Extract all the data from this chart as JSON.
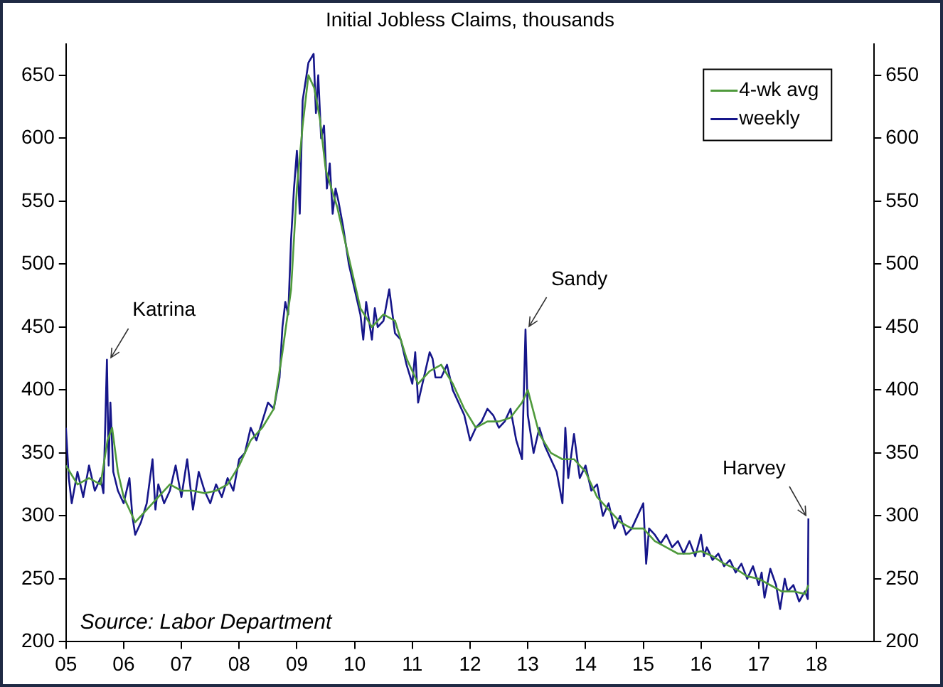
{
  "chart_data": {
    "type": "line",
    "title": "Initial Jobless Claims, thousands",
    "xlim": [
      2005,
      2019
    ],
    "xticks": [
      {
        "value": 2005,
        "label": "05"
      },
      {
        "value": 2006,
        "label": "06"
      },
      {
        "value": 2007,
        "label": "07"
      },
      {
        "value": 2008,
        "label": "08"
      },
      {
        "value": 2009,
        "label": "09"
      },
      {
        "value": 2010,
        "label": "10"
      },
      {
        "value": 2011,
        "label": "11"
      },
      {
        "value": 2012,
        "label": "12"
      },
      {
        "value": 2013,
        "label": "13"
      },
      {
        "value": 2014,
        "label": "14"
      },
      {
        "value": 2015,
        "label": "15"
      },
      {
        "value": 2016,
        "label": "16"
      },
      {
        "value": 2017,
        "label": "17"
      },
      {
        "value": 2018,
        "label": "18"
      }
    ],
    "ylim": [
      200,
      675
    ],
    "yticks": [
      200,
      250,
      300,
      350,
      400,
      450,
      500,
      550,
      600,
      650
    ],
    "y2lim": [
      200,
      675
    ],
    "y2ticks": [
      200,
      250,
      300,
      350,
      400,
      450,
      500,
      550,
      600,
      650
    ],
    "grid": false,
    "legend": "top right",
    "annotations": [
      {
        "text": "Katrina",
        "x": 2005.71,
        "y": 424
      },
      {
        "text": "Sandy",
        "x": 2012.96,
        "y": 448
      },
      {
        "text": "Harvey",
        "x": 2017.86,
        "y": 298
      },
      "Source: Labor Department"
    ],
    "series": [
      {
        "name": "4-wk avg",
        "color": "#4f9a3c",
        "x": [
          2005,
          2005.2,
          2005.4,
          2005.6,
          2005.72,
          2005.8,
          2005.9,
          2006,
          2006.2,
          2006.4,
          2006.6,
          2006.8,
          2007,
          2007.2,
          2007.4,
          2007.6,
          2007.8,
          2008,
          2008.2,
          2008.4,
          2008.6,
          2008.75,
          2008.9,
          2009,
          2009.1,
          2009.2,
          2009.3,
          2009.4,
          2009.5,
          2009.7,
          2009.9,
          2010.1,
          2010.3,
          2010.5,
          2010.7,
          2010.9,
          2011.1,
          2011.3,
          2011.5,
          2011.7,
          2011.9,
          2012.1,
          2012.3,
          2012.5,
          2012.7,
          2012.9,
          2013,
          2013.2,
          2013.4,
          2013.6,
          2013.8,
          2014,
          2014.2,
          2014.4,
          2014.6,
          2014.8,
          2015,
          2015.2,
          2015.4,
          2015.6,
          2015.8,
          2016,
          2016.2,
          2016.4,
          2016.6,
          2016.8,
          2017,
          2017.2,
          2017.4,
          2017.6,
          2017.8,
          2017.86
        ],
        "values": [
          340,
          325,
          330,
          325,
          360,
          370,
          335,
          315,
          295,
          305,
          315,
          325,
          320,
          320,
          318,
          320,
          325,
          340,
          360,
          370,
          385,
          430,
          480,
          560,
          610,
          650,
          640,
          615,
          575,
          545,
          505,
          465,
          450,
          460,
          455,
          425,
          405,
          415,
          420,
          405,
          385,
          370,
          375,
          375,
          378,
          390,
          400,
          365,
          350,
          345,
          345,
          335,
          315,
          305,
          295,
          290,
          290,
          280,
          275,
          270,
          270,
          272,
          268,
          262,
          258,
          252,
          250,
          245,
          240,
          240,
          238,
          245
        ]
      },
      {
        "name": "weekly",
        "color": "#16168a",
        "x": [
          2005,
          2005.05,
          2005.1,
          2005.2,
          2005.3,
          2005.4,
          2005.5,
          2005.6,
          2005.65,
          2005.71,
          2005.74,
          2005.77,
          2005.82,
          2005.9,
          2006,
          2006.1,
          2006.15,
          2006.2,
          2006.3,
          2006.4,
          2006.5,
          2006.55,
          2006.6,
          2006.7,
          2006.8,
          2006.9,
          2007,
          2007.1,
          2007.2,
          2007.3,
          2007.4,
          2007.5,
          2007.6,
          2007.7,
          2007.8,
          2007.9,
          2008,
          2008.1,
          2008.2,
          2008.3,
          2008.4,
          2008.5,
          2008.6,
          2008.7,
          2008.75,
          2008.8,
          2008.85,
          2008.9,
          2008.95,
          2009,
          2009.05,
          2009.1,
          2009.15,
          2009.2,
          2009.29,
          2009.33,
          2009.37,
          2009.42,
          2009.47,
          2009.52,
          2009.57,
          2009.62,
          2009.67,
          2009.72,
          2009.8,
          2009.9,
          2010,
          2010.1,
          2010.15,
          2010.2,
          2010.3,
          2010.35,
          2010.4,
          2010.5,
          2010.6,
          2010.7,
          2010.8,
          2010.9,
          2011,
          2011.05,
          2011.1,
          2011.2,
          2011.3,
          2011.35,
          2011.4,
          2011.5,
          2011.6,
          2011.7,
          2011.8,
          2011.9,
          2012,
          2012.1,
          2012.2,
          2012.3,
          2012.4,
          2012.5,
          2012.6,
          2012.7,
          2012.8,
          2012.9,
          2012.96,
          2013,
          2013.1,
          2013.2,
          2013.3,
          2013.4,
          2013.5,
          2013.6,
          2013.65,
          2013.7,
          2013.8,
          2013.9,
          2014,
          2014.1,
          2014.2,
          2014.3,
          2014.4,
          2014.5,
          2014.6,
          2014.7,
          2014.8,
          2014.9,
          2015,
          2015.05,
          2015.1,
          2015.2,
          2015.3,
          2015.4,
          2015.5,
          2015.6,
          2015.7,
          2015.8,
          2015.9,
          2016,
          2016.05,
          2016.1,
          2016.2,
          2016.3,
          2016.4,
          2016.5,
          2016.6,
          2016.7,
          2016.8,
          2016.9,
          2017,
          2017.05,
          2017.1,
          2017.2,
          2017.3,
          2017.37,
          2017.45,
          2017.5,
          2017.6,
          2017.7,
          2017.8,
          2017.85,
          2017.86
        ],
        "values": [
          370,
          330,
          310,
          335,
          315,
          340,
          320,
          330,
          318,
          424,
          340,
          390,
          335,
          320,
          310,
          330,
          300,
          285,
          295,
          310,
          345,
          305,
          325,
          310,
          320,
          340,
          315,
          345,
          305,
          335,
          320,
          310,
          325,
          315,
          330,
          320,
          345,
          350,
          370,
          360,
          375,
          390,
          385,
          410,
          450,
          470,
          460,
          520,
          560,
          590,
          540,
          630,
          645,
          660,
          667,
          620,
          650,
          600,
          610,
          560,
          580,
          540,
          560,
          550,
          530,
          500,
          480,
          460,
          440,
          470,
          440,
          465,
          450,
          455,
          480,
          445,
          440,
          420,
          405,
          430,
          390,
          410,
          430,
          425,
          410,
          410,
          420,
          400,
          390,
          380,
          360,
          370,
          375,
          385,
          380,
          370,
          375,
          385,
          360,
          345,
          448,
          380,
          350,
          370,
          355,
          345,
          335,
          310,
          370,
          330,
          365,
          330,
          340,
          320,
          325,
          300,
          310,
          290,
          300,
          285,
          290,
          300,
          310,
          262,
          290,
          285,
          278,
          285,
          275,
          280,
          270,
          280,
          268,
          285,
          268,
          275,
          265,
          270,
          260,
          265,
          255,
          262,
          250,
          260,
          245,
          255,
          235,
          258,
          245,
          226,
          250,
          240,
          245,
          232,
          240,
          234,
          298
        ]
      }
    ]
  }
}
